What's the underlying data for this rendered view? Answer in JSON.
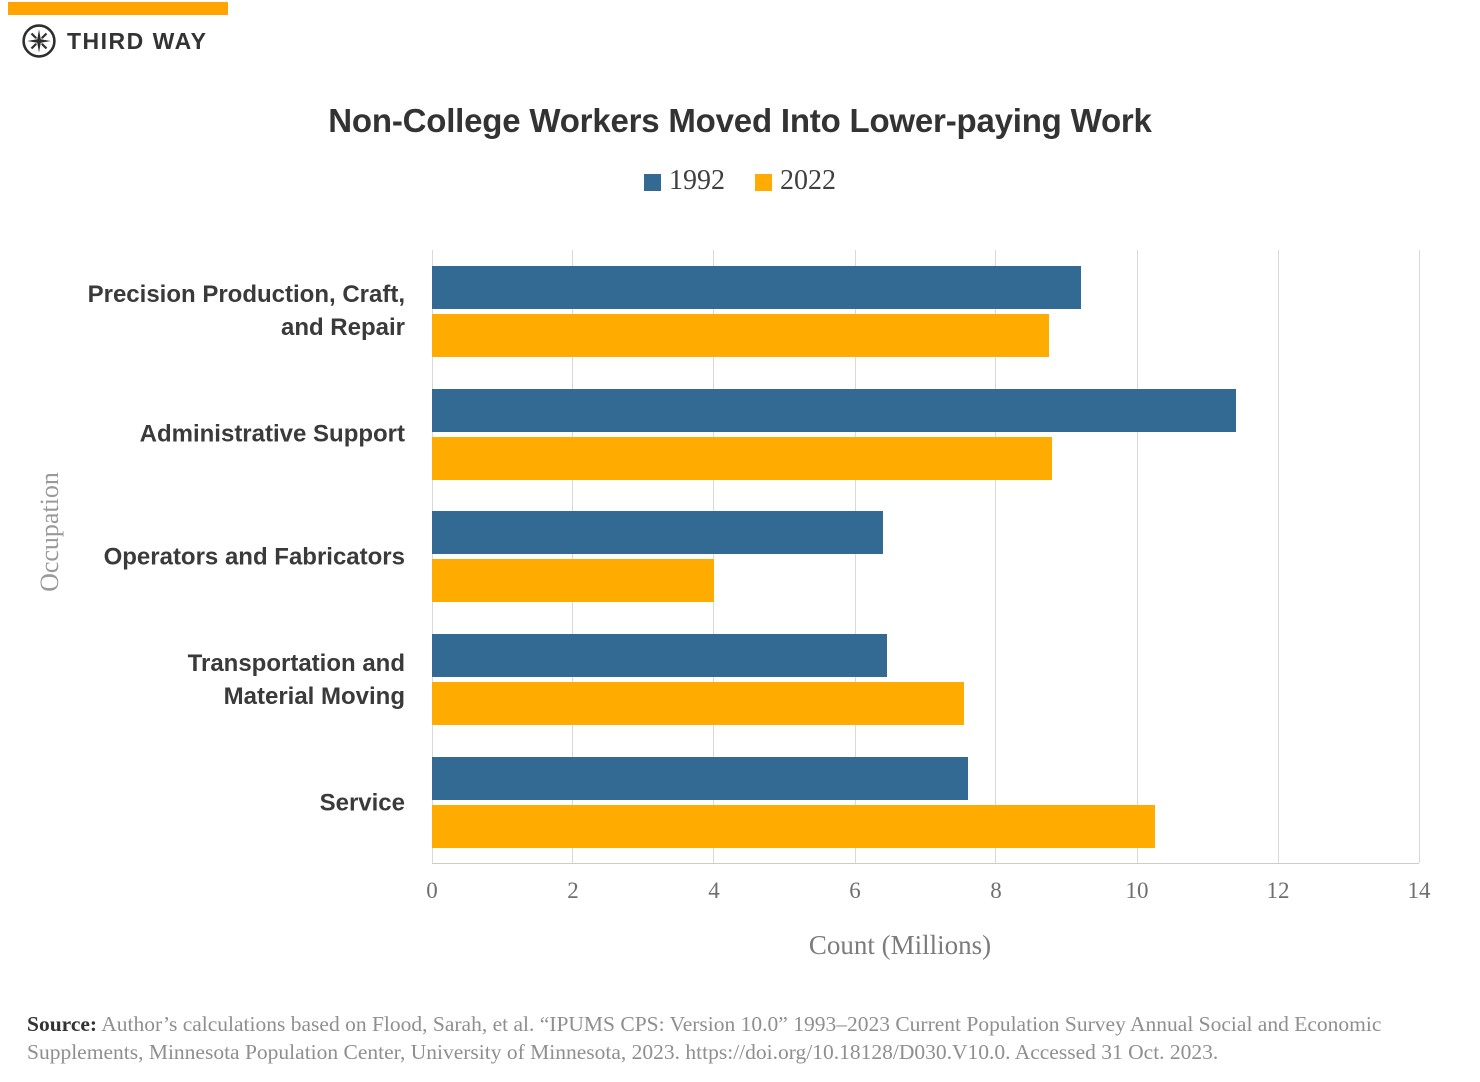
{
  "brand": {
    "name": "THIRD WAY",
    "accent_color": "#FFA400",
    "logo_color": "#2e2e2e"
  },
  "chart_data": {
    "type": "bar",
    "orientation": "horizontal",
    "title": "Non-College Workers Moved Into Lower-paying Work",
    "categories": [
      "Precision Production, Craft,\nand Repair",
      "Administrative Support",
      "Operators and Fabricators",
      "Transportation and\nMaterial Moving",
      "Service"
    ],
    "series": [
      {
        "name": "1992",
        "color": "#336A94",
        "values": [
          9.2,
          11.4,
          6.4,
          6.45,
          7.6
        ]
      },
      {
        "name": "2022",
        "color": "#FFAB00",
        "values": [
          8.75,
          8.8,
          4.0,
          7.55,
          10.25
        ]
      }
    ],
    "xlabel": "Count (Millions)",
    "ylabel": "Occupation",
    "xlim": [
      0,
      14
    ],
    "xticks": [
      0,
      2,
      4,
      6,
      8,
      10,
      12,
      14
    ],
    "grid": true,
    "legend_position": "top"
  },
  "source": {
    "prefix": "Source:",
    "text": " Author’s calculations based on Flood, Sarah, et al. “IPUMS CPS: Version 10.0” 1993–2023 Current Population Survey Annual Social and Economic Supplements, Minnesota Population Center, University of Minnesota, 2023. https://doi.org/10.18128/D030.V10.0. Accessed 31 Oct. 2023."
  }
}
